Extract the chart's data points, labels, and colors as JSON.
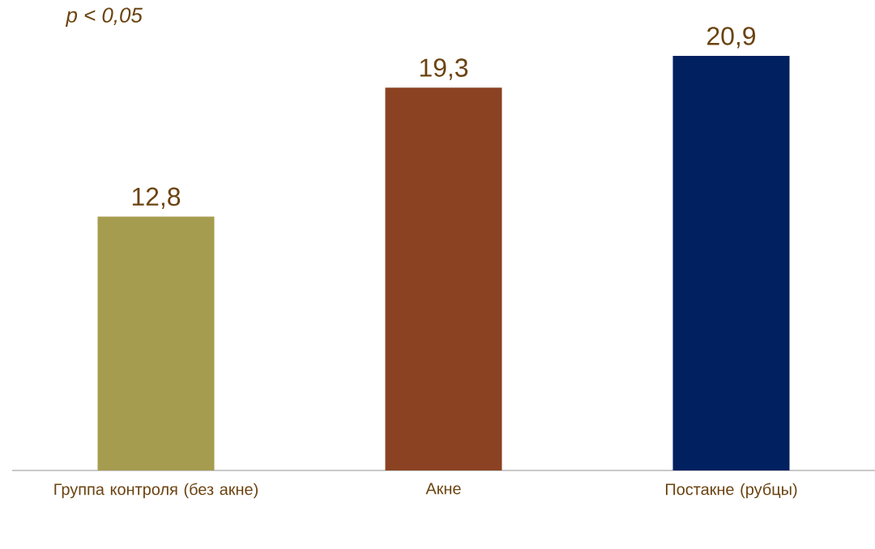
{
  "chart_data": {
    "type": "bar",
    "categories": [
      "Группа контроля (без акне)",
      "Акне",
      "Постакне (рубцы)"
    ],
    "values": [
      12.8,
      19.3,
      20.9
    ],
    "colors": [
      "#a59c4f",
      "#8b4222",
      "#002060"
    ],
    "value_labels": [
      "12,8",
      "19,3",
      "20,9"
    ],
    "annotations": [
      "p < 0,05"
    ]
  }
}
